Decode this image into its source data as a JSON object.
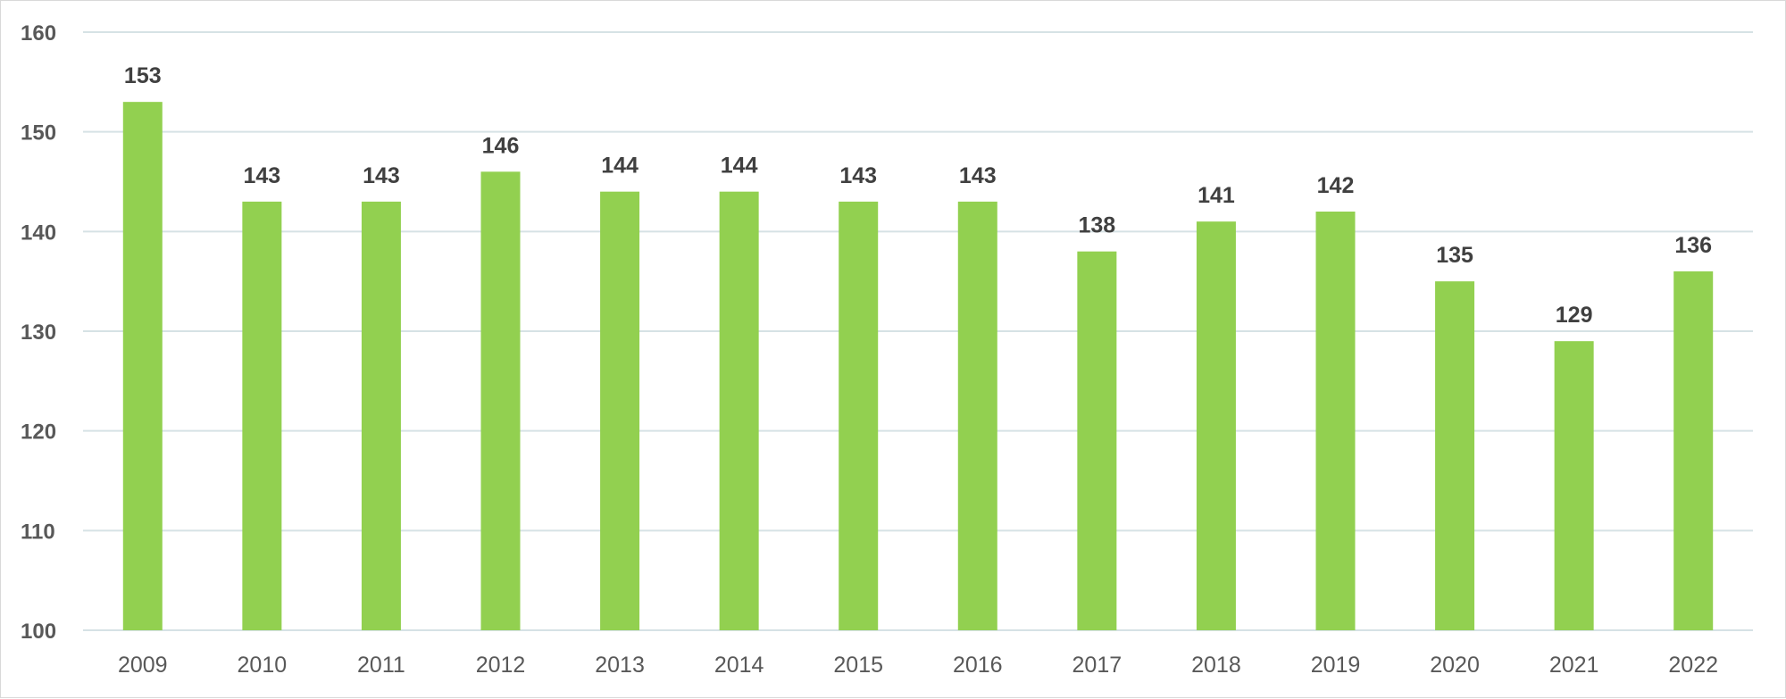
{
  "chart_data": {
    "type": "bar",
    "categories": [
      "2009",
      "2010",
      "2011",
      "2012",
      "2013",
      "2014",
      "2015",
      "2016",
      "2017",
      "2018",
      "2019",
      "2020",
      "2021",
      "2022"
    ],
    "values": [
      153,
      143,
      143,
      146,
      144,
      144,
      143,
      143,
      138,
      141,
      142,
      135,
      129,
      136
    ],
    "ylim": [
      100,
      160
    ],
    "yticks": [
      100,
      110,
      120,
      130,
      140,
      150,
      160
    ],
    "title": "",
    "xlabel": "",
    "ylabel": "",
    "grid": true,
    "legend": "none",
    "data_labels": true,
    "bar_color": "#92d050",
    "gridline_color": "#d6e2e5",
    "tick_color": "#595959",
    "label_color": "#404040"
  }
}
